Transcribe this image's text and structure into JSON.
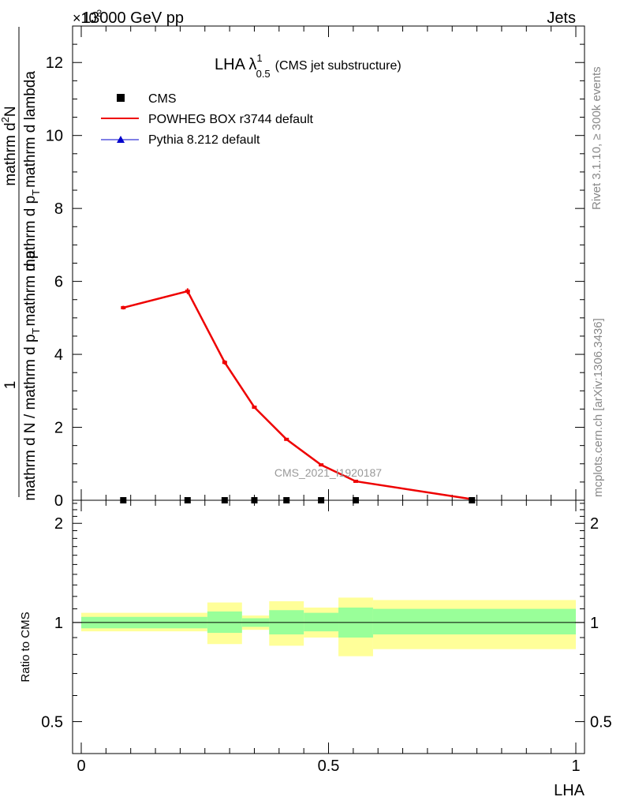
{
  "header": {
    "energy": "13000 GeV pp",
    "category": "Jets",
    "multiplier": "×10",
    "multiplier_exp": "3"
  },
  "title": {
    "main": "LHA λ",
    "sup": "1",
    "sub": "0.5",
    "suffix": "(CMS jet substructure)"
  },
  "side_labels": {
    "rivet": "Rivet 3.1.10, ≥ 300k events",
    "mcplots": "mcplots.cern.ch [arXiv:1306.3436]"
  },
  "watermark": "CMS_2021_I1920187",
  "y_axis_label": {
    "numer_1": "1",
    "denom_1": "mathrm d N / mathrm d p",
    "denom_1_sub": "T",
    "denom_1_rest": "mathrm d p",
    "numer_2": "mathrm d",
    "numer_2_sup": "2",
    "numer_2_rest": "N",
    "denom_2": "mathrm d p",
    "denom_2_sub": "T",
    "denom_2_rest": "mathrm d lambda"
  },
  "legend": [
    {
      "label": "CMS",
      "color": "#000000",
      "marker": "square"
    },
    {
      "label": "POWHEG BOX r3744 default",
      "color": "#ee0000",
      "marker": "line"
    },
    {
      "label": "Pythia 8.212 default",
      "color": "#0000cc",
      "marker": "triangle"
    }
  ],
  "chart_data": {
    "type": "line",
    "xlabel": "LHA",
    "main_ylabel": "1/(dN/dpT) d²N/(dpT dλ)",
    "ratio_ylabel": "Ratio to CMS",
    "x_ticks": [
      "0",
      "0.5",
      "1"
    ],
    "main_y_ticks": [
      "0",
      "2",
      "4",
      "6",
      "8",
      "10",
      "12"
    ],
    "ratio_y_ticks": [
      "0.5",
      "1",
      "2"
    ],
    "xlim": [
      0,
      1
    ],
    "main_ylim": [
      0,
      13
    ],
    "ratio_ylim": [
      0.4,
      2.35
    ],
    "bin_edges": [
      0,
      0.17,
      0.26,
      0.32,
      0.38,
      0.45,
      0.52,
      0.6,
      1.0
    ],
    "series": [
      {
        "name": "CMS",
        "x": [
          0.085,
          0.215,
          0.29,
          0.35,
          0.415,
          0.485,
          0.555,
          0.79
        ],
        "y": [
          0,
          0,
          0,
          0,
          0,
          0,
          0,
          0
        ],
        "color": "#000000"
      },
      {
        "name": "POWHEG BOX r3744 default",
        "x": [
          0.085,
          0.215,
          0.29,
          0.35,
          0.415,
          0.485,
          0.555,
          0.79
        ],
        "y": [
          5.28,
          5.73,
          3.78,
          2.55,
          1.67,
          0.97,
          0.52,
          0.03
        ],
        "err": [
          0.05,
          0.08,
          0.06,
          0.04,
          0.03,
          0.03,
          0.02,
          0.01
        ],
        "color": "#ee0000"
      },
      {
        "name": "Pythia 8.212 default",
        "x": [],
        "y": [],
        "color": "#0000cc"
      }
    ],
    "ratio_bands": [
      {
        "x0": 0.0,
        "x1": 0.255,
        "inner": [
          0.96,
          1.04
        ],
        "outer": [
          0.94,
          1.07
        ]
      },
      {
        "x0": 0.255,
        "x1": 0.325,
        "inner": [
          0.93,
          1.08
        ],
        "outer": [
          0.86,
          1.15
        ]
      },
      {
        "x0": 0.325,
        "x1": 0.38,
        "inner": [
          0.97,
          1.03
        ],
        "outer": [
          0.95,
          1.05
        ]
      },
      {
        "x0": 0.38,
        "x1": 0.45,
        "inner": [
          0.92,
          1.09
        ],
        "outer": [
          0.85,
          1.16
        ]
      },
      {
        "x0": 0.45,
        "x1": 0.52,
        "inner": [
          0.94,
          1.07
        ],
        "outer": [
          0.9,
          1.11
        ]
      },
      {
        "x0": 0.52,
        "x1": 0.59,
        "inner": [
          0.9,
          1.11
        ],
        "outer": [
          0.79,
          1.19
        ]
      },
      {
        "x0": 0.59,
        "x1": 1.0,
        "inner": [
          0.92,
          1.1
        ],
        "outer": [
          0.83,
          1.17
        ]
      }
    ]
  }
}
